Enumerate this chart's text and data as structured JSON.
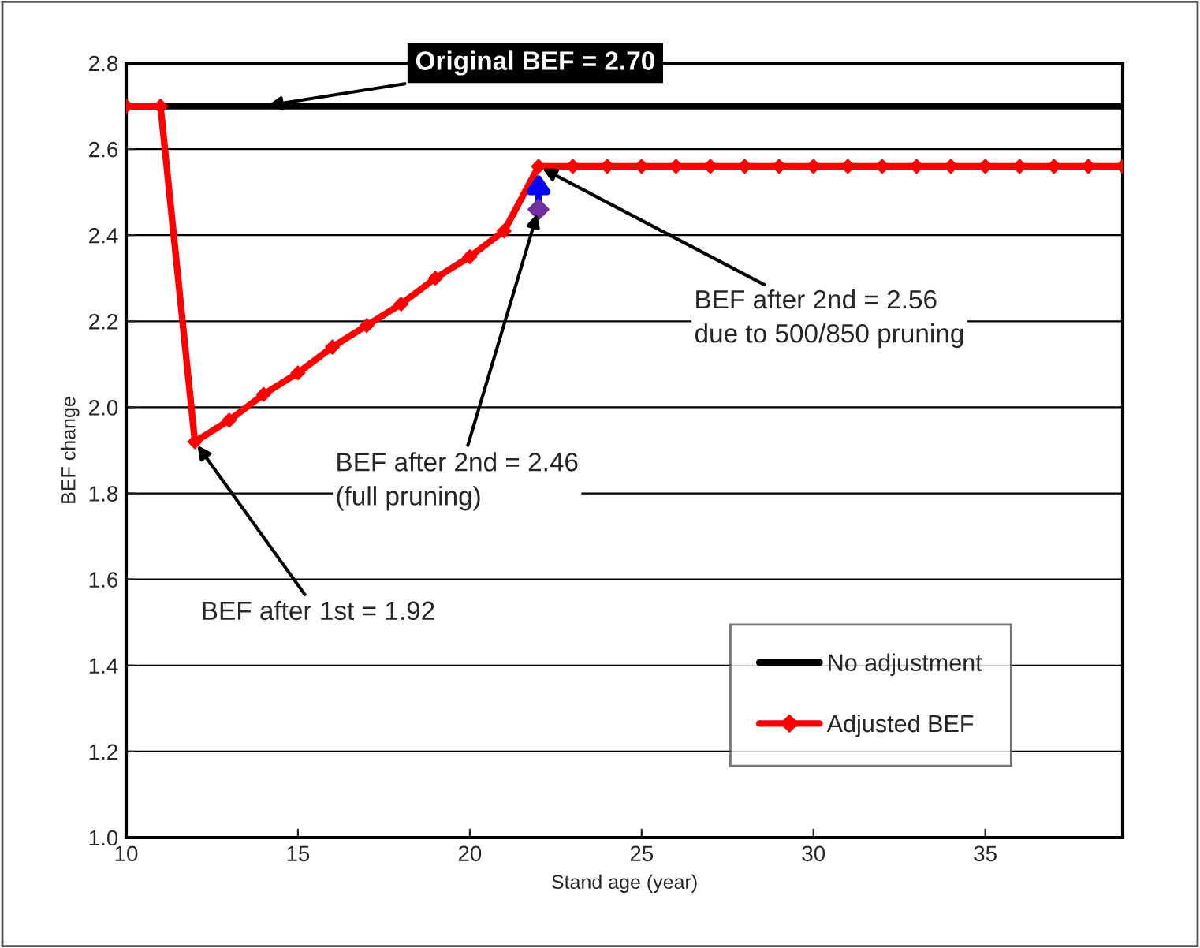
{
  "chart_data": {
    "type": "line",
    "xlabel": "Stand age (year)",
    "ylabel": "BEF change",
    "x": [
      10,
      11,
      12,
      13,
      14,
      15,
      16,
      17,
      18,
      19,
      20,
      21,
      22,
      23,
      24,
      25,
      26,
      27,
      28,
      29,
      30,
      31,
      32,
      33,
      34,
      35,
      36,
      37,
      38,
      39
    ],
    "series": [
      {
        "name": "No adjustment",
        "color": "#000000",
        "marker": "none",
        "values": [
          2.7,
          2.7,
          2.7,
          2.7,
          2.7,
          2.7,
          2.7,
          2.7,
          2.7,
          2.7,
          2.7,
          2.7,
          2.7,
          2.7,
          2.7,
          2.7,
          2.7,
          2.7,
          2.7,
          2.7,
          2.7,
          2.7,
          2.7,
          2.7,
          2.7,
          2.7,
          2.7,
          2.7,
          2.7,
          2.7
        ]
      },
      {
        "name": "Adjusted BEF",
        "color": "#ff0000",
        "marker": "diamond",
        "values": [
          2.7,
          2.7,
          1.92,
          1.97,
          2.03,
          2.08,
          2.14,
          2.19,
          2.24,
          2.3,
          2.35,
          2.41,
          2.56,
          2.56,
          2.56,
          2.56,
          2.56,
          2.56,
          2.56,
          2.56,
          2.56,
          2.56,
          2.56,
          2.56,
          2.56,
          2.56,
          2.56,
          2.56,
          2.56,
          2.56
        ]
      },
      {
        "type": "scatter",
        "color": "#7030a0",
        "marker": "diamond",
        "x": [
          22
        ],
        "values": [
          2.46
        ]
      }
    ],
    "xlim": [
      10,
      39
    ],
    "xticks": [
      10,
      15,
      20,
      25,
      30,
      35
    ],
    "ylim": [
      1.0,
      2.8
    ],
    "yticks": [
      {
        "value": 1.0,
        "label": "1.0"
      },
      {
        "value": 1.2,
        "label": "1.2"
      },
      {
        "value": 1.4,
        "label": "1.4"
      },
      {
        "value": 1.6,
        "label": "1.6"
      },
      {
        "value": 1.8,
        "label": "1.8"
      },
      {
        "value": 2.0,
        "label": "2.0"
      },
      {
        "value": 2.2,
        "label": "2.2"
      },
      {
        "value": 2.4,
        "label": "2.4"
      },
      {
        "value": 2.6,
        "label": "2.6"
      },
      {
        "value": 2.8,
        "label": "2.8"
      }
    ],
    "grid": "y",
    "legend": "bottom right",
    "annotations": [
      {
        "text": "Original BEF = 2.70",
        "x": 14,
        "y": 2.7
      },
      {
        "text": "BEF after 2nd = 2.56\ndue to 500/850 pruning",
        "x": 22,
        "y": 2.56
      },
      {
        "text": "BEF after 2nd = 2.46\n(full pruning)",
        "x": 22,
        "y": 2.46
      },
      {
        "text": "BEF after 1st = 1.92",
        "x": 12,
        "y": 1.92
      }
    ]
  }
}
